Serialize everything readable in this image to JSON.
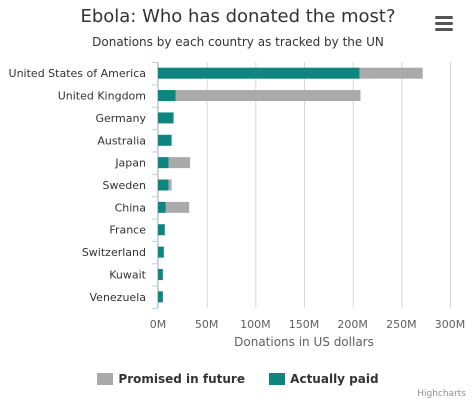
{
  "menu_icon": "hamburger-menu-icon",
  "credits": "Highcharts",
  "chart_data": {
    "type": "bar",
    "stacked": true,
    "orientation": "horizontal",
    "title": "Ebola: Who has donated the most?",
    "subtitle": "Donations by each country as tracked by the UN",
    "xlabel": "",
    "ylabel": "Donations in US dollars",
    "categories": [
      "United States of America",
      "United Kingdom",
      "Germany",
      "Australia",
      "Japan",
      "Sweden",
      "China",
      "France",
      "Switzerland",
      "Kuwait",
      "Venezuela"
    ],
    "series": [
      {
        "name": "Promised in future",
        "color": "#aaaaaa",
        "values": [
          65,
          190,
          0,
          0,
          22,
          3,
          24,
          0,
          0,
          0,
          0
        ]
      },
      {
        "name": "Actually paid",
        "color": "#0f8580",
        "values": [
          207,
          18,
          16,
          14,
          11,
          11,
          8,
          7,
          6,
          5,
          5
        ]
      }
    ],
    "units": "millions USD",
    "ylim": [
      0,
      300
    ],
    "ticks": [
      0,
      50,
      100,
      150,
      200,
      250,
      300
    ],
    "tick_labels": [
      "0M",
      "50M",
      "100M",
      "150M",
      "200M",
      "250M",
      "300M"
    ],
    "grid": true,
    "legend": "bottom-center"
  }
}
